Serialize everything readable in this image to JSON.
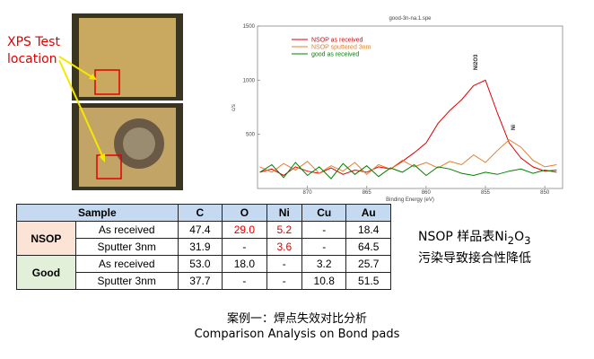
{
  "photo_label": "XPS Test location",
  "chart_data": {
    "type": "line",
    "title": "good-3n-na.1.spe",
    "x_label": "Binding Energy (eV)",
    "y_label": "c/s",
    "x": [
      874,
      873,
      872,
      871,
      870,
      869,
      868,
      867,
      866,
      865,
      864,
      863,
      862,
      861,
      860,
      859,
      858,
      857,
      856,
      855,
      854,
      853,
      852,
      851,
      850,
      849
    ],
    "series": [
      {
        "name": "NSOP as received",
        "color": "#e00000",
        "values": [
          150,
          180,
          120,
          200,
          160,
          140,
          190,
          130,
          170,
          150,
          200,
          180,
          250,
          330,
          420,
          600,
          720,
          820,
          950,
          1000,
          700,
          420,
          280,
          200,
          160,
          170
        ]
      },
      {
        "name": "NSOP sputtered 3nm",
        "color": "#e08030",
        "values": [
          200,
          150,
          230,
          170,
          250,
          140,
          210,
          160,
          240,
          130,
          220,
          180,
          260,
          200,
          240,
          190,
          250,
          220,
          310,
          240,
          350,
          450,
          380,
          260,
          200,
          220
        ]
      },
      {
        "name": "good as received",
        "color": "#008000",
        "values": [
          150,
          220,
          100,
          240,
          120,
          200,
          90,
          230,
          130,
          210,
          110,
          190,
          150,
          220,
          120,
          200,
          180,
          140,
          120,
          150,
          130,
          160,
          180,
          140,
          170,
          150
        ]
      }
    ],
    "xlim": [
      874.2,
      848.5
    ],
    "xticks": [
      870,
      865,
      860,
      855,
      850
    ],
    "ylim": [
      0,
      1500
    ],
    "yticks": [
      500,
      1000,
      1500
    ],
    "grid": false,
    "legend": "upper left",
    "annotations": [
      "Ni2O3",
      "Ni"
    ]
  },
  "table": {
    "header": [
      "Sample",
      "C",
      "O",
      "Ni",
      "Cu",
      "Au"
    ],
    "rows": [
      [
        "NSOP",
        "As received",
        "47.4",
        "29.0",
        "5.2",
        "-",
        "18.4"
      ],
      [
        "Sputter 3nm",
        "31.9",
        "-",
        "3.6",
        "-",
        "64.5"
      ],
      [
        "Good",
        "As received",
        "53.0",
        "18.0",
        "-",
        "3.2",
        "25.7"
      ],
      [
        "Sputter 3nm",
        "37.7",
        "-",
        "-",
        "10.8",
        "51.5"
      ]
    ]
  },
  "note": [
    "NSOP 样品表Ni",
    "2",
    "O",
    "3",
    "污染导致接合性降低"
  ],
  "caption": {
    "zh": "案例一：焊点失效对比分析",
    "en": "Comparison Analysis on Bond pads"
  }
}
